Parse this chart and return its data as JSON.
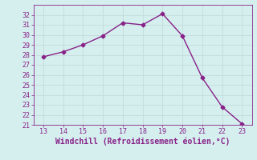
{
  "x": [
    13,
    14,
    15,
    16,
    17,
    18,
    19,
    20,
    21,
    22,
    23
  ],
  "y": [
    27.8,
    28.3,
    29.0,
    29.9,
    31.2,
    31.0,
    32.1,
    29.9,
    25.7,
    22.8,
    21.1
  ],
  "line_color": "#882288",
  "marker": "D",
  "markersize": 2.5,
  "linewidth": 1.0,
  "xlabel": "Windchill (Refroidissement éolien,°C)",
  "xlim": [
    12.5,
    23.5
  ],
  "ylim": [
    21,
    33
  ],
  "xticks": [
    13,
    14,
    15,
    16,
    17,
    18,
    19,
    20,
    21,
    22,
    23
  ],
  "yticks": [
    21,
    22,
    23,
    24,
    25,
    26,
    27,
    28,
    29,
    30,
    31,
    32
  ],
  "bg_color": "#d5efef",
  "grid_color": "#c8dede",
  "tick_color": "#882288",
  "label_color": "#882288",
  "tick_fontsize": 6.0,
  "xlabel_fontsize": 7.0
}
